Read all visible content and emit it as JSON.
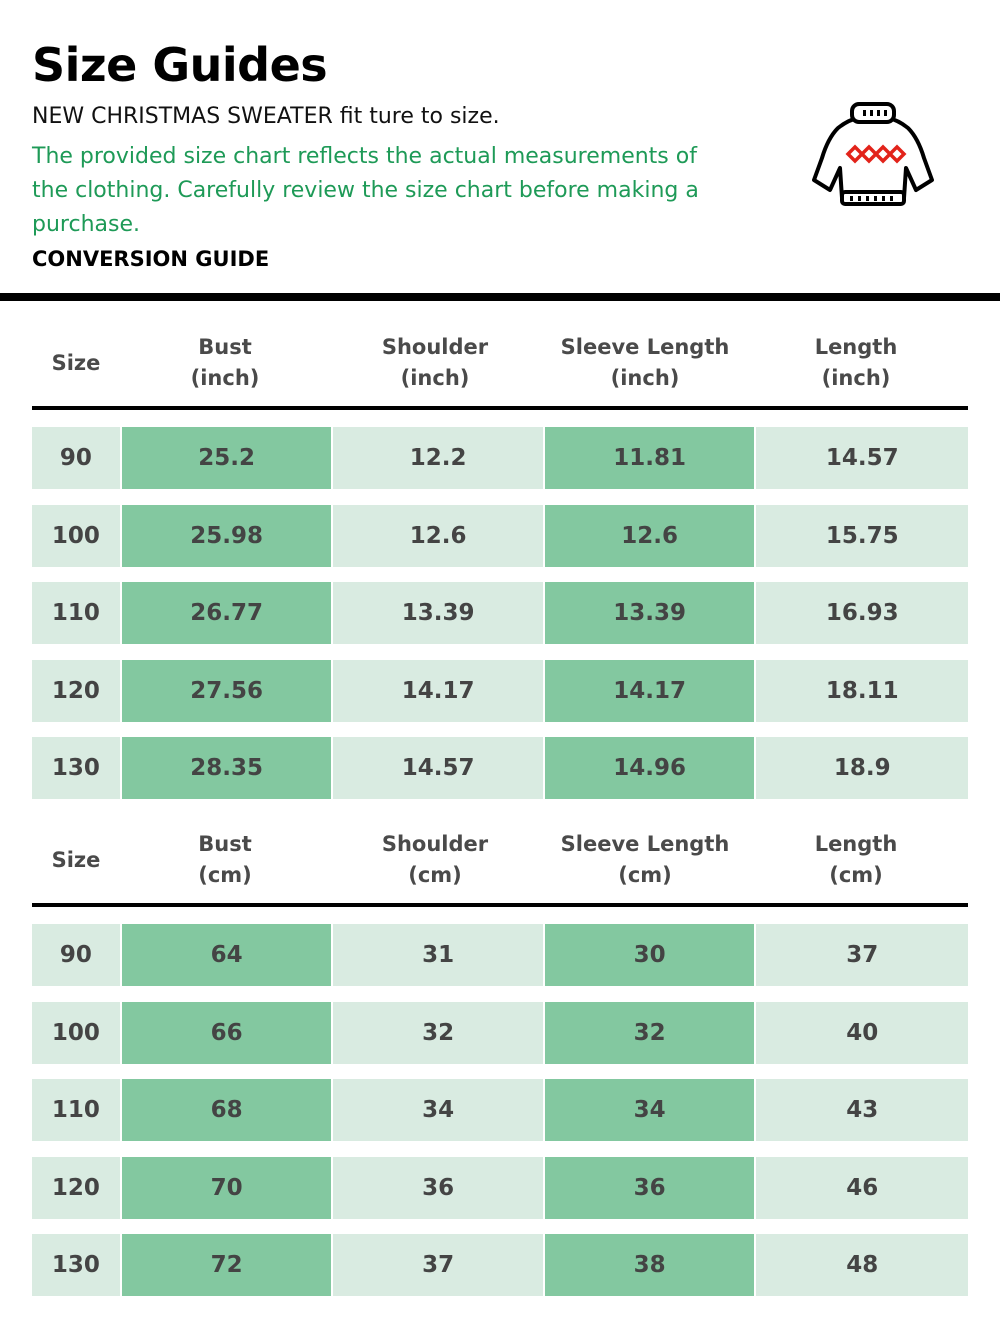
{
  "title": "Size Guides",
  "subtitle": "NEW CHRISTMAS SWEATER fit ture to size.",
  "note": "The provided size chart reflects the actual measurements of the clothing. Carefully review the size chart before making a purchase.",
  "conversion_label": "CONVERSION GUIDE",
  "colors": {
    "accent_text": "#1e9a57",
    "cell_light": "#d9ebe1",
    "cell_dark": "#83c8a0"
  },
  "icon": "sweater-icon",
  "tables": [
    {
      "headers": [
        "Size",
        "Bust\n(inch)",
        "Shoulder\n(inch)",
        "Sleeve Length\n(inch)",
        "Length\n(inch)"
      ],
      "rows": [
        [
          "90",
          "25.2",
          "12.2",
          "11.81",
          "14.57"
        ],
        [
          "100",
          "25.98",
          "12.6",
          "12.6",
          "15.75"
        ],
        [
          "110",
          "26.77",
          "13.39",
          "13.39",
          "16.93"
        ],
        [
          "120",
          "27.56",
          "14.17",
          "14.17",
          "18.11"
        ],
        [
          "130",
          "28.35",
          "14.57",
          "14.96",
          "18.9"
        ]
      ]
    },
    {
      "headers": [
        "Size",
        "Bust\n(cm)",
        "Shoulder\n(cm)",
        "Sleeve Length\n(cm)",
        "Length\n(cm)"
      ],
      "rows": [
        [
          "90",
          "64",
          "31",
          "30",
          "37"
        ],
        [
          "100",
          "66",
          "32",
          "32",
          "40"
        ],
        [
          "110",
          "68",
          "34",
          "34",
          "43"
        ],
        [
          "120",
          "70",
          "36",
          "36",
          "46"
        ],
        [
          "130",
          "72",
          "37",
          "38",
          "48"
        ]
      ]
    }
  ]
}
